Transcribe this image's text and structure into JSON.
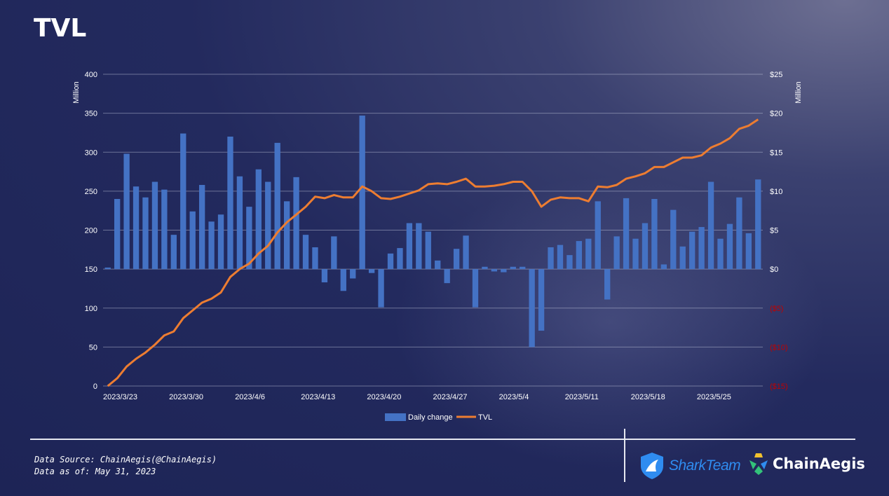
{
  "page": {
    "title": "TVL",
    "source_line": "Data Source: ChainAegis(@ChainAegis)",
    "date_line": "Data as of: May 31, 2023",
    "brand_left": "SharkTeam",
    "brand_right": "ChainAegis"
  },
  "colors": {
    "bar": "#4472c4",
    "line": "#ed7d31",
    "negative_label": "#c00000",
    "axis_text": "#ffffff"
  },
  "chart_data": {
    "type": "bar",
    "title": "TVL",
    "left_axis_label": "Million",
    "right_axis_label": "Million",
    "left_ylim": [
      0,
      400
    ],
    "left_ticks": [
      "400",
      "350",
      "300",
      "250",
      "200",
      "150",
      "100",
      "50",
      "0"
    ],
    "right_ylim": [
      -15,
      25
    ],
    "right_ticks": [
      "$25",
      "$20",
      "$15",
      "$10",
      "$5",
      "$0",
      "($5)",
      "($10)",
      "($15)"
    ],
    "x_tick_labels": [
      "2023/3/23",
      "2023/3/30",
      "2023/4/6",
      "2023/4/13",
      "2023/4/20",
      "2023/4/27",
      "2023/5/4",
      "2023/5/11",
      "2023/5/18",
      "2023/5/25"
    ],
    "grid": true,
    "legend_position": "bottom",
    "series": [
      {
        "name": "Daily change",
        "type": "bar",
        "axis": "right",
        "values": [
          0.2,
          9.0,
          14.8,
          10.6,
          9.2,
          11.2,
          10.2,
          4.4,
          17.4,
          7.4,
          10.8,
          6.1,
          7.0,
          17.0,
          11.9,
          8.0,
          12.8,
          11.2,
          16.2,
          8.7,
          11.8,
          4.4,
          2.8,
          -1.7,
          4.2,
          -2.8,
          -1.2,
          19.7,
          -0.5,
          -4.9,
          2.0,
          2.7,
          5.9,
          5.9,
          4.8,
          1.1,
          -1.8,
          2.6,
          4.3,
          -4.9,
          0.3,
          -0.3,
          -0.4,
          0.3,
          0.3,
          -10.0,
          -7.9,
          2.8,
          3.1,
          1.8,
          3.6,
          3.9,
          8.7,
          -3.9,
          4.2,
          9.1,
          3.9,
          5.9,
          9.0,
          0.6,
          7.6,
          2.9,
          4.8,
          5.4,
          11.2,
          3.9,
          5.8,
          9.2,
          4.6,
          11.5
        ]
      },
      {
        "name": "TVL",
        "type": "line",
        "axis": "left",
        "values": [
          0,
          10,
          25,
          35,
          43,
          53,
          65,
          70,
          87,
          97,
          107,
          112,
          120,
          140,
          150,
          157,
          170,
          180,
          197,
          210,
          220,
          230,
          243,
          241,
          245,
          242,
          242,
          256,
          250,
          241,
          240,
          243,
          247,
          251,
          259,
          260,
          259,
          262,
          266,
          256,
          256,
          257,
          259,
          262,
          262,
          250,
          230,
          239,
          242,
          241,
          241,
          237,
          256,
          255,
          258,
          266,
          269,
          273,
          281,
          281,
          287,
          293,
          293,
          296,
          306,
          311,
          318,
          330,
          334,
          342
        ]
      }
    ]
  }
}
